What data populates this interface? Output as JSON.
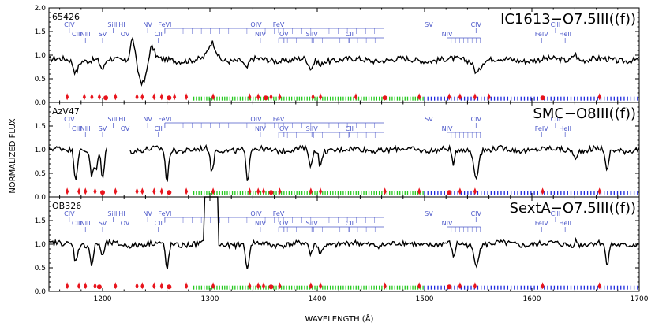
{
  "chart_data": {
    "type": "line",
    "xlabel": "WAVELENGTH (Å)",
    "ylabel": "NORMALIZED FLUX",
    "xlim": [
      1150,
      1700
    ],
    "ylim": [
      0.0,
      2.0
    ],
    "x_ticks": [
      1200,
      1300,
      1400,
      1500,
      1600,
      1700
    ],
    "y_ticks": [
      "0.0",
      "0.5",
      "1.0",
      "1.5",
      "2.0"
    ],
    "colors": {
      "spectrum": "#000000",
      "ion_marks": "#4a56c8",
      "mask_red": "#e8141c",
      "mask_green": "#22c81c",
      "mask_blue": "#1c28dc"
    },
    "ion_labels": [
      {
        "label": "CIV",
        "x": 1169,
        "row": 0
      },
      {
        "label": "CIII",
        "x": 1176,
        "row": 1
      },
      {
        "label": "NIII",
        "x": 1184,
        "row": 1
      },
      {
        "label": "SV",
        "x": 1200,
        "row": 1
      },
      {
        "label": "SiIII",
        "x": 1210,
        "row": 0
      },
      {
        "label": "HI",
        "x": 1218,
        "row": 0
      },
      {
        "label": "OV",
        "x": 1221,
        "row": 1
      },
      {
        "label": "NV",
        "x": 1242,
        "row": 0
      },
      {
        "label": "CII",
        "x": 1252,
        "row": 1
      },
      {
        "label": "FeVI",
        "x": 1258,
        "row": 0
      },
      {
        "label": "OIV",
        "x": 1343,
        "row": 0
      },
      {
        "label": "NIV",
        "x": 1347,
        "row": 1
      },
      {
        "label": "FeV",
        "x": 1364,
        "row": 0
      },
      {
        "label": "OV",
        "x": 1369,
        "row": 1
      },
      {
        "label": "SiIV",
        "x": 1395,
        "row": 1
      },
      {
        "label": "CII",
        "x": 1430,
        "row": 1
      },
      {
        "label": "SV",
        "x": 1504,
        "row": 0
      },
      {
        "label": "NIV",
        "x": 1521,
        "row": 1
      },
      {
        "label": "CIV",
        "x": 1548,
        "row": 0
      },
      {
        "label": "FeIV",
        "x": 1609,
        "row": 1
      },
      {
        "label": "CIII",
        "x": 1622,
        "row": 0
      },
      {
        "label": "HeII",
        "x": 1631,
        "row": 1
      }
    ],
    "panels": [
      {
        "id": "65426",
        "title": "IC1613−O7.5III((f))",
        "continuum": 0.9,
        "features": [
          {
            "x": 1175,
            "d": -0.25,
            "w": 3
          },
          {
            "x": 1200,
            "d": -0.22,
            "w": 3
          },
          {
            "x": 1228,
            "d": 0.5,
            "w": 3
          },
          {
            "x": 1238,
            "d": -0.5,
            "w": 6
          },
          {
            "x": 1245,
            "d": 0.35,
            "w": 4
          },
          {
            "x": 1302,
            "d": 0.35,
            "w": 5
          },
          {
            "x": 1334,
            "d": -0.2,
            "w": 3
          },
          {
            "x": 1394,
            "d": -0.2,
            "w": 3
          },
          {
            "x": 1403,
            "d": -0.12,
            "w": 2
          },
          {
            "x": 1549,
            "d": -0.25,
            "w": 4
          },
          {
            "x": 1640,
            "d": 0.15,
            "w": 3
          }
        ],
        "gaps": [],
        "red_marks": [
          1167,
          1183,
          1190,
          1197,
          1203,
          1212,
          1232,
          1237,
          1248,
          1255,
          1262,
          1267,
          1278,
          1303,
          1337,
          1345,
          1352,
          1357,
          1365,
          1396,
          1403,
          1436,
          1463,
          1495,
          1523,
          1533,
          1547,
          1560,
          1610,
          1663
        ]
      },
      {
        "id": "AzV47",
        "title": "SMC−O8III((f))",
        "continuum": 1.0,
        "features": [
          {
            "x": 1175,
            "d": -0.6,
            "w": 2
          },
          {
            "x": 1190,
            "d": -0.55,
            "w": 2
          },
          {
            "x": 1194,
            "d": -0.45,
            "w": 2
          },
          {
            "x": 1200,
            "d": -0.65,
            "w": 2
          },
          {
            "x": 1260,
            "d": -0.7,
            "w": 2
          },
          {
            "x": 1302,
            "d": -0.5,
            "w": 2
          },
          {
            "x": 1335,
            "d": -0.7,
            "w": 2
          },
          {
            "x": 1394,
            "d": -0.4,
            "w": 2
          },
          {
            "x": 1403,
            "d": -0.35,
            "w": 2
          },
          {
            "x": 1527,
            "d": -0.35,
            "w": 2
          },
          {
            "x": 1548,
            "d": -0.55,
            "w": 3
          },
          {
            "x": 1641,
            "d": -0.2,
            "w": 2
          },
          {
            "x": 1670,
            "d": -0.5,
            "w": 2
          }
        ],
        "gaps": [
          [
            1205,
            1225
          ]
        ],
        "red_marks": [
          1167,
          1178,
          1184,
          1193,
          1200,
          1212,
          1232,
          1237,
          1248,
          1255,
          1262,
          1278,
          1303,
          1337,
          1345,
          1350,
          1357,
          1365,
          1394,
          1403,
          1463,
          1495,
          1523,
          1533,
          1547,
          1610,
          1663
        ]
      },
      {
        "id": "OB326",
        "title": "SextA−O7.5III((f))",
        "continuum": 1.0,
        "features": [
          {
            "x": 1175,
            "d": -0.35,
            "w": 2
          },
          {
            "x": 1190,
            "d": -0.45,
            "w": 2
          },
          {
            "x": 1200,
            "d": -0.3,
            "w": 2
          },
          {
            "x": 1260,
            "d": -0.55,
            "w": 2
          },
          {
            "x": 1335,
            "d": -0.6,
            "w": 2
          },
          {
            "x": 1394,
            "d": -0.25,
            "w": 2
          },
          {
            "x": 1403,
            "d": -0.2,
            "w": 2
          },
          {
            "x": 1527,
            "d": -0.3,
            "w": 2
          },
          {
            "x": 1548,
            "d": -0.4,
            "w": 3
          },
          {
            "x": 1641,
            "d": 0.1,
            "w": 2
          },
          {
            "x": 1670,
            "d": -0.45,
            "w": 2
          }
        ],
        "gaps": [],
        "spikes": [
          [
            1295,
            1308
          ]
        ],
        "red_marks": [
          1167,
          1178,
          1184,
          1193,
          1197,
          1212,
          1232,
          1237,
          1248,
          1255,
          1262,
          1278,
          1303,
          1337,
          1345,
          1350,
          1357,
          1365,
          1394,
          1403,
          1463,
          1495,
          1523,
          1533,
          1547,
          1610,
          1663
        ]
      }
    ]
  }
}
